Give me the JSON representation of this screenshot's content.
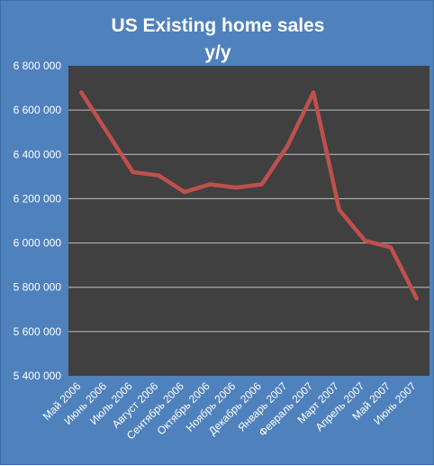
{
  "chart_data": {
    "type": "line",
    "title": "US Existing home sales",
    "subtitle": "y/y",
    "categories": [
      "Май 2006",
      "Июнь 2006",
      "Июль 2006",
      "Август 2006",
      "Сентябрь 2006",
      "Октябрь 2006",
      "Ноябрь 2006",
      "Декабрь 2006",
      "Январь 2007",
      "Февраль 2007",
      "Март 2007",
      "Апрель 2007",
      "Май 2007",
      "Июнь 2007"
    ],
    "series": [
      {
        "values": [
          6680000,
          6500000,
          6320000,
          6305000,
          6230000,
          6265000,
          6250000,
          6265000,
          6440000,
          6680000,
          6150000,
          6010000,
          5980000,
          5750000
        ]
      }
    ],
    "ylim": [
      5400000,
      6800000
    ],
    "yticks": [
      "5 400 000",
      "5 600 000",
      "5 800 000",
      "6 000 000",
      "6 200 000",
      "6 400 000",
      "6 600 000",
      "6 800 000"
    ],
    "grid": true,
    "legend": "none",
    "colors": {
      "background": "#4f81bd",
      "plot": "#404040",
      "line": "#c0504d",
      "grid": "#bfbfbf",
      "text": "#ffffff"
    }
  }
}
